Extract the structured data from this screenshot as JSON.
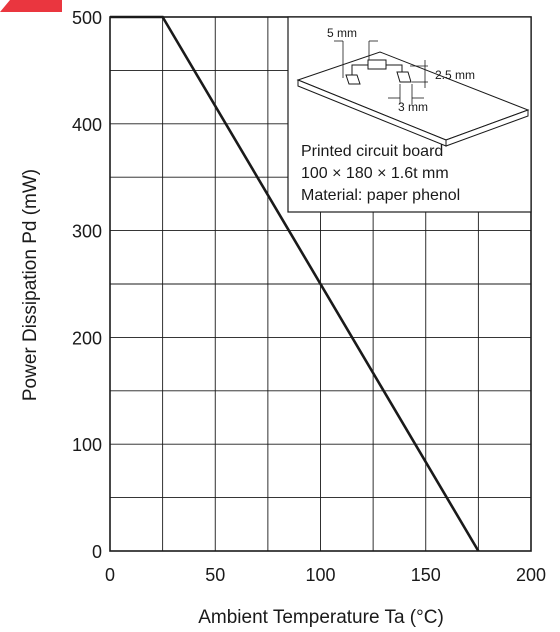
{
  "colors": {
    "line": "#1a1a1a",
    "grid": "#1a1a1a",
    "accent_mark": "#e8202a",
    "inset_pad": "#ffffff"
  },
  "chart_data": {
    "type": "line",
    "title": "",
    "xlabel": "Ambient Temperature   Ta   (°C)",
    "ylabel": "Power Dissipation   Pd   (mW)",
    "xlim": [
      0,
      200
    ],
    "ylim": [
      0,
      500
    ],
    "xticks": [
      0,
      50,
      100,
      150,
      200
    ],
    "yticks": [
      0,
      100,
      200,
      300,
      400,
      500
    ],
    "xtick_labels": [
      "0",
      "50",
      "100",
      "150",
      "200"
    ],
    "ytick_labels": [
      "0",
      "100",
      "200",
      "300",
      "400",
      "500"
    ],
    "x_grid_step": 25,
    "y_grid_step": 50,
    "grid": true,
    "series": [
      {
        "x": [
          0,
          25,
          175
        ],
        "y": [
          500,
          500,
          0
        ]
      }
    ]
  },
  "inset": {
    "lines": [
      "Printed circuit board",
      "100 × 180 × 1.6t mm",
      "Material: paper phenol"
    ],
    "dims": {
      "lead_spacing": "5 mm",
      "pad_height": "2.5 mm",
      "pad_width": "3 mm"
    }
  }
}
